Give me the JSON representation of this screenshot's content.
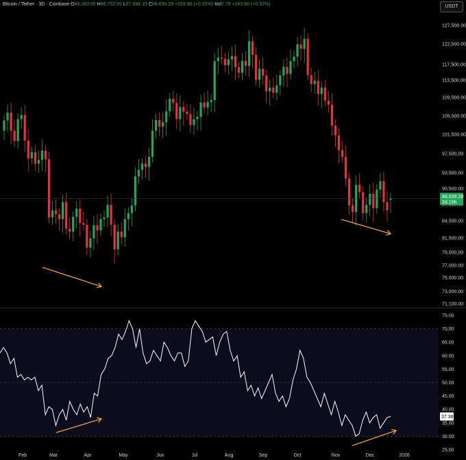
{
  "header": {
    "symbol": "Bitcoin / Tether · 3D · Coinbase",
    "open_label": "O",
    "open": "88,380.55",
    "high_label": "H",
    "high": "88,752.26",
    "low_label": "L",
    "low": "87,894.19",
    "close_label": "C",
    "close": "88,639.29",
    "change": "+283.90 (+0.32%)",
    "vol_label": "Vol",
    "vol": "7.79",
    "change2": "+283.90 (+0.32%)"
  },
  "currency_button": "USDT",
  "colors": {
    "up": "#26a65b",
    "down": "#e8313f",
    "rsi_line": "#ffffff",
    "arrow": "#e8a04a",
    "rsi_band": "#0c0c1c"
  },
  "chart_data": [
    {
      "type": "candlestick",
      "title": "Bitcoin / Tether · 3D · Coinbase",
      "y_ticks": [
        71100,
        73000,
        75000,
        77000,
        79000,
        81500,
        84500,
        87500,
        90500,
        93500,
        97500,
        101500,
        105500,
        109500,
        113500,
        117500,
        122500,
        127500
      ],
      "y_tick_labels": [
        "71,100.00",
        "73,000.00",
        "75,000.00",
        "77,000.00",
        "79,000.00",
        "81,500.00",
        "84,500.00",
        "87,500.00",
        "90,500.00",
        "93,500.00",
        "97,500.00",
        "101,500.00",
        "105,500.00",
        "109,500.00",
        "113,500.00",
        "117,500.00",
        "122,500.00",
        "127,500.00"
      ],
      "last_price": "88,639.29",
      "countdown": "2d 15h",
      "x_labels": [
        "Feb",
        "Mar",
        "Apr",
        "May",
        "Jun",
        "Jul",
        "Aug",
        "Sep",
        "Oct",
        "Nov",
        "Dec",
        "2026"
      ],
      "series_close": [
        104500,
        106200,
        102300,
        100100,
        104800,
        105700,
        100200,
        96500,
        97800,
        95400,
        96200,
        98100,
        96300,
        85100,
        86400,
        85700,
        84800,
        87900,
        83100,
        82600,
        85200,
        86700,
        84100,
        83800,
        79800,
        81400,
        83700,
        82800,
        84800,
        85100,
        87400,
        83800,
        79500,
        82600,
        81600,
        84800,
        85900,
        87300,
        92800,
        94100,
        95400,
        94700,
        96800,
        102300,
        104600,
        103200,
        104100,
        106500,
        109200,
        108300,
        104800,
        107400,
        106400,
        105900,
        103500,
        104800,
        105300,
        108400,
        107300,
        108500,
        108900,
        118300,
        119200,
        118900,
        117300,
        118700,
        119500,
        116800,
        115400,
        118400,
        117100,
        123200,
        119800,
        113600,
        116400,
        114700,
        110900,
        111800,
        110600,
        112300,
        114700,
        116900,
        115100,
        118300,
        119400,
        122400,
        121300,
        123900,
        114800,
        112600,
        113400,
        110300,
        111800,
        108800,
        107900,
        103400,
        101300,
        98200,
        96800,
        92400,
        87300,
        86100,
        91200,
        89800,
        85900,
        87400,
        89500,
        86800,
        90300,
        91900,
        87900,
        86400,
        88639
      ],
      "series_open": [
        102300,
        104500,
        106200,
        102300,
        100100,
        104800,
        105700,
        100200,
        96500,
        97800,
        95400,
        96200,
        98100,
        96300,
        85100,
        86400,
        85700,
        84800,
        87900,
        83100,
        82600,
        85200,
        86700,
        84100,
        83800,
        79800,
        81400,
        83700,
        82800,
        84800,
        85100,
        87400,
        83800,
        79500,
        82600,
        81600,
        84800,
        85900,
        87300,
        92800,
        94100,
        95400,
        94700,
        96800,
        102300,
        104600,
        103200,
        104100,
        106500,
        109200,
        108300,
        104800,
        107400,
        106400,
        105900,
        103500,
        104800,
        105300,
        108400,
        107300,
        108500,
        108900,
        118300,
        119200,
        118900,
        117300,
        118700,
        119500,
        116800,
        115400,
        118400,
        117100,
        123200,
        119800,
        113600,
        116400,
        114700,
        110900,
        111800,
        110600,
        112300,
        114700,
        116900,
        115100,
        118300,
        119400,
        122400,
        121300,
        123900,
        114800,
        112600,
        113400,
        110300,
        111800,
        108800,
        107900,
        103400,
        101300,
        98200,
        96800,
        92400,
        87300,
        86100,
        91200,
        89800,
        85900,
        87400,
        89500,
        86800,
        90300,
        91900,
        87900,
        88380
      ]
    },
    {
      "type": "line",
      "y_ticks": [
        25,
        30,
        35,
        40,
        45,
        50,
        55,
        60,
        65,
        70,
        75
      ],
      "y_tick_labels": [
        "25.00",
        "30.00",
        "35.00",
        "40.00",
        "45.00",
        "50.00",
        "55.00",
        "60.00",
        "65.00",
        "70.00",
        "75.00"
      ],
      "overbought": 70,
      "oversold": 30,
      "last_value": "37.38",
      "x_labels": [
        "Feb",
        "Mar",
        "Apr",
        "May",
        "Jun",
        "Jul",
        "Aug",
        "Sep",
        "Oct",
        "Nov",
        "Dec",
        "2026"
      ],
      "values": [
        61,
        63,
        61,
        57,
        59,
        52,
        53,
        51,
        52,
        51,
        52,
        47,
        49,
        38,
        41,
        40,
        34,
        38,
        40,
        36,
        43,
        40,
        38,
        42,
        39,
        41,
        37,
        46,
        45,
        53,
        55,
        59,
        60,
        63,
        68,
        66,
        69,
        73,
        70,
        63,
        70,
        61,
        57,
        58,
        62,
        60,
        58,
        65,
        63,
        60,
        58,
        61,
        61,
        56,
        58,
        70,
        73,
        71,
        69,
        65,
        66,
        67,
        60,
        65,
        68,
        69,
        62,
        58,
        60,
        52,
        54,
        47,
        49,
        45,
        48,
        44,
        47,
        50,
        53,
        46,
        43,
        45,
        41,
        44,
        51,
        55,
        62,
        59,
        52,
        50,
        47,
        44,
        41,
        46,
        42,
        38,
        43,
        39,
        34,
        38,
        36,
        34,
        30,
        31,
        36,
        39,
        35,
        37,
        38,
        33,
        35,
        37,
        37.38
      ]
    }
  ]
}
